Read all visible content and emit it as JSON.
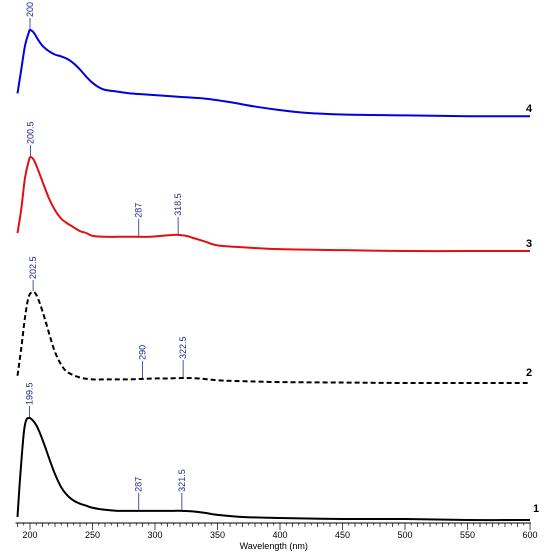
{
  "chart_data": {
    "type": "line",
    "title": "",
    "xlabel": "Wavelength (nm)",
    "ylabel": "",
    "xlim": [
      190,
      600
    ],
    "x_ticks": [
      200,
      250,
      300,
      350,
      400,
      450,
      500,
      550,
      600
    ],
    "grid": false,
    "legend": "none",
    "series": [
      {
        "id": "4",
        "color": "#0000e0",
        "style": "solid",
        "x": [
          190,
          193,
          196,
          199,
          200,
          203,
          206,
          210,
          215,
          220,
          225,
          230,
          235,
          240,
          245,
          250,
          255,
          260,
          270,
          280,
          290,
          300,
          320,
          340,
          360,
          380,
          400,
          420,
          450,
          500,
          550,
          600
        ],
        "y": [
          0.28,
          0.55,
          0.82,
          0.97,
          1.0,
          0.97,
          0.9,
          0.82,
          0.76,
          0.72,
          0.7,
          0.67,
          0.62,
          0.55,
          0.47,
          0.4,
          0.35,
          0.32,
          0.3,
          0.28,
          0.27,
          0.26,
          0.24,
          0.22,
          0.18,
          0.13,
          0.09,
          0.06,
          0.04,
          0.03,
          0.02,
          0.02
        ],
        "peaks": [
          {
            "x": 200,
            "label": "200"
          }
        ]
      },
      {
        "id": "3",
        "color": "#e01010",
        "style": "solid",
        "x": [
          190,
          193,
          196,
          199,
          200.5,
          203,
          206,
          210,
          215,
          220,
          225,
          230,
          235,
          240,
          245,
          250,
          260,
          270,
          280,
          287,
          295,
          305,
          315,
          318.5,
          325,
          330,
          340,
          350,
          370,
          400,
          450,
          500,
          550,
          600
        ],
        "y": [
          0.2,
          0.45,
          0.78,
          0.96,
          1.0,
          0.97,
          0.88,
          0.74,
          0.57,
          0.44,
          0.35,
          0.3,
          0.26,
          0.22,
          0.2,
          0.17,
          0.16,
          0.16,
          0.16,
          0.16,
          0.16,
          0.17,
          0.18,
          0.18,
          0.17,
          0.15,
          0.11,
          0.07,
          0.05,
          0.03,
          0.02,
          0.01,
          0.01,
          0.01
        ],
        "peaks": [
          {
            "x": 200.5,
            "label": "200.5"
          },
          {
            "x": 287,
            "label": "287"
          },
          {
            "x": 318.5,
            "label": "318.5"
          }
        ]
      },
      {
        "id": "2",
        "color": "#000000",
        "style": "dashed",
        "x": [
          190,
          193,
          196,
          199,
          202.5,
          205,
          208,
          212,
          216,
          220,
          225,
          230,
          240,
          250,
          260,
          270,
          280,
          290,
          300,
          310,
          322.5,
          335,
          350,
          370,
          400,
          450,
          500,
          550,
          600
        ],
        "y": [
          0.08,
          0.38,
          0.72,
          0.95,
          1.0,
          0.97,
          0.87,
          0.7,
          0.51,
          0.34,
          0.2,
          0.12,
          0.06,
          0.04,
          0.04,
          0.04,
          0.04,
          0.045,
          0.05,
          0.05,
          0.055,
          0.05,
          0.03,
          0.02,
          0.01,
          0.005,
          0.0,
          0.0,
          0.0
        ],
        "peaks": [
          {
            "x": 202.5,
            "label": "202.5"
          },
          {
            "x": 290,
            "label": "290"
          },
          {
            "x": 322.5,
            "label": "322.5"
          }
        ]
      },
      {
        "id": "1",
        "color": "#000000",
        "style": "solid",
        "x": [
          190,
          192,
          195,
          197,
          199.5,
          202,
          205,
          208,
          212,
          216,
          220,
          225,
          230,
          235,
          240,
          245,
          250,
          260,
          270,
          280,
          287,
          295,
          305,
          315,
          321.5,
          330,
          340,
          350,
          370,
          400,
          450,
          500,
          550,
          600
        ],
        "y": [
          0.03,
          0.4,
          0.85,
          0.98,
          1.0,
          0.98,
          0.93,
          0.85,
          0.72,
          0.58,
          0.45,
          0.32,
          0.24,
          0.19,
          0.16,
          0.14,
          0.12,
          0.1,
          0.09,
          0.09,
          0.09,
          0.09,
          0.09,
          0.09,
          0.09,
          0.085,
          0.07,
          0.05,
          0.03,
          0.02,
          0.01,
          0.01,
          0.0,
          0.0
        ],
        "peaks": [
          {
            "x": 199.5,
            "label": "199.5"
          },
          {
            "x": 287,
            "label": "287"
          },
          {
            "x": 321.5,
            "label": "321.5"
          }
        ]
      }
    ],
    "peak_label_color": "#1a2a8a"
  }
}
